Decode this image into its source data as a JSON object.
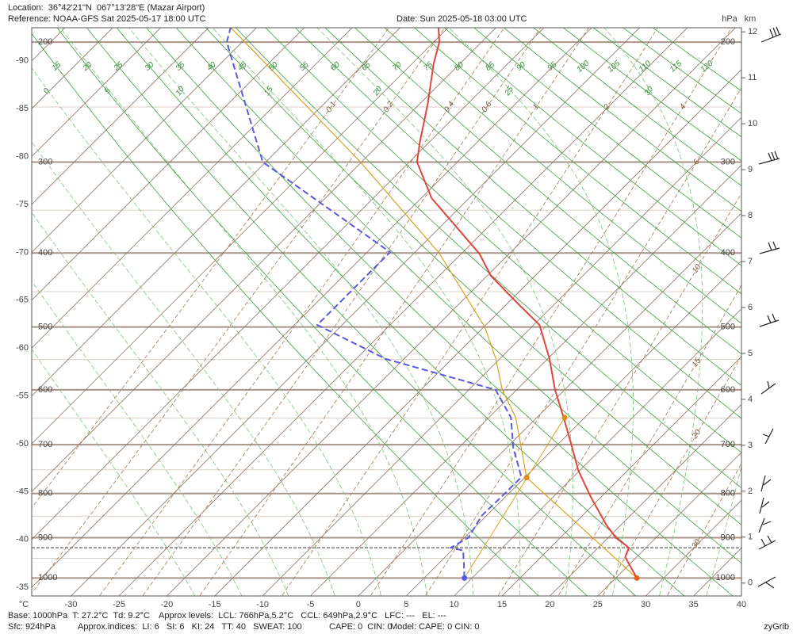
{
  "header": {
    "location": "Location:  36°42'21\"N  067°13'28\"E (Mazar Airport)",
    "reference": "Reference: NOAA-GFS Sat 2025-05-17 18:00 UTC",
    "date": "Date: Sun 2025-05-18 03:00 UTC"
  },
  "chart_data": {
    "type": "skewt",
    "x_unit": "°C",
    "y_unit": "hPa",
    "y2_unit": "km",
    "xlim": [
      -34.1,
      40
    ],
    "y2lim": [
      -0.28,
      12.09
    ],
    "xticks": [
      -30,
      -25,
      -20,
      -15,
      -10,
      -5,
      0,
      5,
      10,
      15,
      20,
      25,
      30,
      35,
      40
    ],
    "left_ticks": [
      -35,
      -40,
      -45,
      -50,
      -55,
      -60,
      -65,
      -70,
      -75,
      -80,
      -85,
      -90
    ],
    "yticks": [
      1000,
      900,
      800,
      700,
      600,
      500,
      400,
      300,
      200
    ],
    "minor_yticks": [
      950,
      850,
      750,
      650,
      550,
      450,
      350,
      250
    ],
    "y2ticks": [
      0,
      1,
      2,
      3,
      4,
      5,
      6,
      7,
      8,
      9,
      10,
      11,
      12
    ],
    "surface_pressure": 924,
    "dry_adiabats": [
      15,
      20,
      25,
      30,
      35,
      40,
      45,
      50,
      55,
      60,
      65,
      70,
      75,
      80,
      85,
      90,
      95,
      100,
      105,
      110,
      115,
      120
    ],
    "moist_adiabats": [
      -20,
      -15,
      -10,
      -5,
      0,
      5,
      10,
      15,
      20,
      25,
      30,
      35
    ],
    "mixing_ratios": [
      0.1,
      0.2,
      0.4,
      0.6,
      1,
      2,
      4,
      6,
      10,
      15,
      20,
      30
    ],
    "series": [
      {
        "color": "#e0453c",
        "dash": false,
        "pressure": [
          1000,
          947,
          924,
          900,
          869,
          807,
          752,
          698,
          649,
          600,
          549,
          497,
          463,
          429,
          401,
          337,
          300,
          282,
          247,
          216,
          200,
          190
        ],
        "values": [
          27.2,
          23.8,
          23.2,
          20.8,
          18.4,
          13.9,
          9.9,
          6.3,
          2.8,
          -1.0,
          -4.8,
          -9.4,
          -14.4,
          -19.6,
          -23.1,
          -33.9,
          -39.2,
          -40.9,
          -44.2,
          -47.7,
          -49.4,
          -51.0
        ]
      },
      {
        "color": "#5a5ae0",
        "dash": true,
        "pressure": [
          1000,
          960,
          931,
          924,
          900,
          849,
          798,
          765,
          706,
          649,
          600,
          549,
          497,
          399,
          300,
          200,
          190
        ],
        "values": [
          9.2,
          7.5,
          6.2,
          4.6,
          5.4,
          4.5,
          4.6,
          4.6,
          0.7,
          -2.7,
          -7.2,
          -21.9,
          -32.6,
          -32.6,
          -55.3,
          -71.6,
          -72.7
        ]
      },
      {
        "color": "#d9a21b",
        "dash": false,
        "pressure": [
          1000,
          766,
          649,
          600,
          549,
          500,
          400,
          300,
          200,
          190
        ],
        "values": [
          27.2,
          5.2,
          -2.2,
          -6.5,
          -10.4,
          -14.9,
          -27.4,
          -45.1,
          -69.7,
          -72.7
        ]
      }
    ],
    "lcl": {
      "pressure": 766,
      "value": 5.2
    },
    "ccl": {
      "pressure": 649,
      "value": 2.9
    }
  },
  "footer": {
    "base": "Base: 1000hPa  T: 27.2°C  Td: 9.2°C",
    "levels": "Approx levels:  LCL: 766hPa,5.2°C   CCL: 649hPa,2.9°C   LFC: ---   EL: ---",
    "sfc": "Sfc: 924hPa",
    "indices": "Approx.indices:  LI: 6   SI: 6   KI: 24   TT: 40   SWEAT: 100",
    "cape": "CAPE: 0  CIN: 0",
    "model": "Model: CAPE: 0 CIN: 0",
    "brand": "zyGrib"
  }
}
